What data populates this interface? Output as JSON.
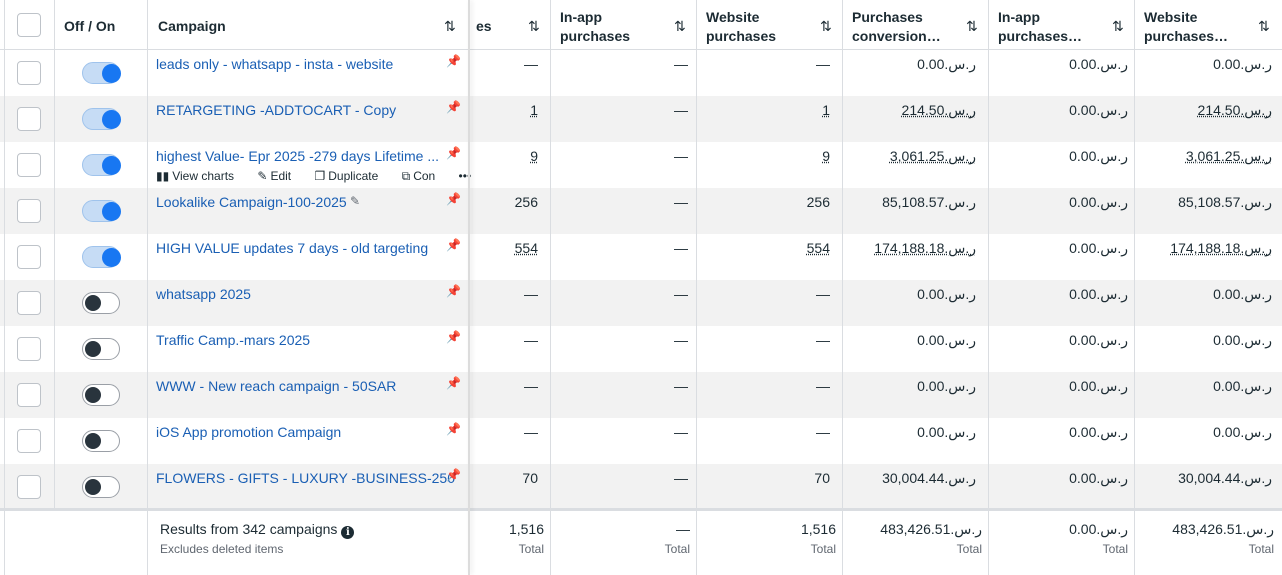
{
  "headers": {
    "off_on": "Off / On",
    "campaign": "Campaign",
    "purchases_partial": "es",
    "inapp_purchases_1": "In-app",
    "inapp_purchases_2": "purchases",
    "website_purchases_1": "Website",
    "website_purchases_2": "purchases",
    "purchases_conv_1": "Purchases",
    "purchases_conv_2": "conversion…",
    "inapp_purch_val_1": "In-app",
    "inapp_purch_val_2": "purchases…",
    "web_purch_val_1": "Website",
    "web_purch_val_2": "purchases…",
    "sort_icon": "⇅"
  },
  "hover_actions": {
    "view_charts": "View charts",
    "edit": "Edit",
    "duplicate": "Duplicate",
    "compare": "Con",
    "more": "•••"
  },
  "rows": [
    {
      "name": "leads only - whatsapp - insta - website",
      "on": true,
      "purchases": "—",
      "inapp": "—",
      "website": "—",
      "conv_value": "0.00.ر.س",
      "inapp_value": "0.00.ر.س",
      "web_value": "0.00.ر.س"
    },
    {
      "name": "RETARGETING -ADDTOCART - Copy",
      "on": true,
      "purchases": "1",
      "inapp": "—",
      "website": "1",
      "conv_value": "214.50.ر.س",
      "inapp_value": "0.00.ر.س",
      "web_value": "214.50.ر.س"
    },
    {
      "name": "highest Value- Epr 2025 -279 days Lifetime ...",
      "on": true,
      "purchases": "9",
      "inapp": "—",
      "website": "9",
      "conv_value": "3,061.25.ر.س",
      "inapp_value": "0.00.ر.س",
      "web_value": "3,061.25.ر.س"
    },
    {
      "name": "Lookalike Campaign-100-2025",
      "on": true,
      "purchases": "256",
      "inapp": "—",
      "website": "256",
      "conv_value": "85,108.57.ر.س",
      "inapp_value": "0.00.ر.س",
      "web_value": "85,108.57.ر.س"
    },
    {
      "name": "HIGH VALUE updates 7 days - old targeting",
      "on": true,
      "purchases": "554",
      "inapp": "—",
      "website": "554",
      "conv_value": "174,188.18.ر.س",
      "inapp_value": "0.00.ر.س",
      "web_value": "174,188.18.ر.س"
    },
    {
      "name": "whatsapp 2025",
      "on": false,
      "purchases": "—",
      "inapp": "—",
      "website": "—",
      "conv_value": "0.00.ر.س",
      "inapp_value": "0.00.ر.س",
      "web_value": "0.00.ر.س"
    },
    {
      "name": "Traffic Camp.-mars 2025",
      "on": false,
      "purchases": "—",
      "inapp": "—",
      "website": "—",
      "conv_value": "0.00.ر.س",
      "inapp_value": "0.00.ر.س",
      "web_value": "0.00.ر.س"
    },
    {
      "name": "WWW - New reach campaign - 50SAR",
      "on": false,
      "purchases": "—",
      "inapp": "—",
      "website": "—",
      "conv_value": "0.00.ر.س",
      "inapp_value": "0.00.ر.س",
      "web_value": "0.00.ر.س"
    },
    {
      "name": "iOS App promotion Campaign",
      "on": false,
      "purchases": "—",
      "inapp": "—",
      "website": "—",
      "conv_value": "0.00.ر.س",
      "inapp_value": "0.00.ر.س",
      "web_value": "0.00.ر.س"
    },
    {
      "name": "FLOWERS - GIFTS - LUXURY -BUSINESS-250",
      "on": false,
      "purchases": "70",
      "inapp": "—",
      "website": "70",
      "conv_value": "30,004.44.ر.س",
      "inapp_value": "0.00.ر.س",
      "web_value": "30,004.44.ر.س"
    }
  ],
  "footer": {
    "results": "Results from 342 campaigns",
    "excludes": "Excludes deleted items",
    "info_icon": "i",
    "total_label": "Total",
    "purchases": "1,516",
    "inapp": "—",
    "website": "1,516",
    "conv_value": "483,426.51.ر.س",
    "inapp_value": "0.00.ر.س",
    "web_value": "483,426.51.ر.س"
  },
  "colors": {
    "link": "#1a5fb4",
    "toggle_on": "#1877f2",
    "toggle_off_knob": "#29343d",
    "row_alt": "#f2f2f2"
  }
}
